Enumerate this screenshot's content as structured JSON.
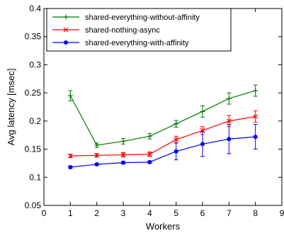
{
  "chart_data": {
    "type": "line",
    "xlabel": "Workers",
    "ylabel": "Avg latency [msec]",
    "xlim": [
      0,
      9
    ],
    "ylim": [
      0.05,
      0.4
    ],
    "xticks": [
      "0",
      "1",
      "2",
      "3",
      "4",
      "5",
      "6",
      "7",
      "8",
      "9"
    ],
    "yticks": [
      "0.05",
      "0.1",
      "0.15",
      "0.2",
      "0.25",
      "0.3",
      "0.35",
      "0.4"
    ],
    "grid": false,
    "legend_position": "top-left",
    "x": [
      1,
      2,
      3,
      4,
      5,
      6,
      7,
      8
    ],
    "series": [
      {
        "name": "shared-everything-without-affinity",
        "color": "#007a00",
        "marker": "plus",
        "values": [
          0.245,
          0.157,
          0.164,
          0.173,
          0.195,
          0.217,
          0.24,
          0.254
        ],
        "errors": [
          0.009,
          0.004,
          0.005,
          0.005,
          0.006,
          0.01,
          0.01,
          0.01
        ]
      },
      {
        "name": "shared-nothing-async",
        "color": "#ff0000",
        "marker": "x",
        "values": [
          0.138,
          0.139,
          0.14,
          0.141,
          0.167,
          0.183,
          0.2,
          0.208
        ],
        "errors": [
          0.003,
          0.003,
          0.004,
          0.004,
          0.006,
          0.007,
          0.01,
          0.01
        ]
      },
      {
        "name": "shared-everything-with-affinity",
        "color": "#0000ff",
        "marker": "dot",
        "values": [
          0.118,
          0.123,
          0.126,
          0.127,
          0.146,
          0.159,
          0.168,
          0.172
        ],
        "errors": [
          0.002,
          0.002,
          0.002,
          0.002,
          0.015,
          0.022,
          0.026,
          0.022
        ]
      }
    ]
  }
}
